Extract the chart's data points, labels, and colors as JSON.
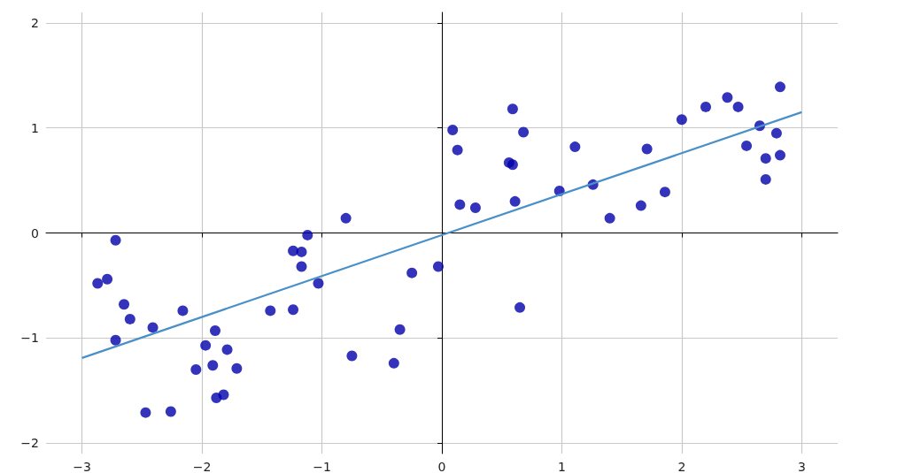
{
  "chart_data": {
    "type": "scatter",
    "xlim": [
      -3.3,
      3.3
    ],
    "ylim": [
      -2.1,
      2.1
    ],
    "xticks": [
      {
        "value": -3,
        "label": "−3"
      },
      {
        "value": -2,
        "label": "−2"
      },
      {
        "value": -1,
        "label": "−1"
      },
      0,
      1,
      2,
      3
    ],
    "yticks": [
      {
        "value": -2,
        "label": "−2"
      },
      {
        "value": -1,
        "label": "−1"
      },
      0,
      1,
      2
    ],
    "grid": true,
    "marker": "circle",
    "series": [
      {
        "color": "#0000aa",
        "x": [
          -2.87,
          -2.79,
          -2.72,
          -2.65,
          -2.6,
          -2.72,
          -2.41,
          -2.47,
          -2.26,
          -2.16,
          -2.05,
          -1.97,
          -1.89,
          -1.91,
          -1.79,
          -1.71,
          -1.88,
          -1.82,
          -1.43,
          -1.24,
          -1.24,
          -1.17,
          -1.17,
          -1.12,
          -1.03,
          -0.8,
          -0.75,
          -0.4,
          -0.35,
          -0.25,
          -0.03,
          0.09,
          0.13,
          0.15,
          0.28,
          0.56,
          0.59,
          0.59,
          0.61,
          0.68,
          0.65,
          0.98,
          1.11,
          1.26,
          1.4,
          1.66,
          1.71,
          1.86,
          2.0,
          2.2,
          2.38,
          2.47,
          2.54,
          2.65,
          2.7,
          2.7,
          2.79,
          2.82,
          2.82
        ],
        "values": [
          -0.48,
          -0.44,
          -0.07,
          -0.68,
          -0.82,
          -1.02,
          -0.9,
          -1.71,
          -1.7,
          -0.74,
          -1.3,
          -1.07,
          -0.93,
          -1.26,
          -1.11,
          -1.29,
          -1.57,
          -1.54,
          -0.74,
          -0.73,
          -0.17,
          -0.18,
          -0.32,
          -0.02,
          -0.48,
          0.14,
          -1.17,
          -1.24,
          -0.92,
          -0.38,
          -0.32,
          0.98,
          0.79,
          0.27,
          0.24,
          0.67,
          0.65,
          1.18,
          0.3,
          0.96,
          -0.71,
          0.4,
          0.82,
          0.46,
          0.14,
          0.26,
          0.8,
          0.39,
          1.08,
          1.2,
          1.29,
          1.2,
          0.83,
          1.02,
          0.71,
          0.51,
          0.95,
          0.74,
          1.39
        ]
      },
      {
        "type": "line",
        "color": "#4a90c8",
        "marker": "none",
        "x": [
          -3,
          3
        ],
        "values": [
          -1.19,
          1.15
        ]
      }
    ]
  }
}
